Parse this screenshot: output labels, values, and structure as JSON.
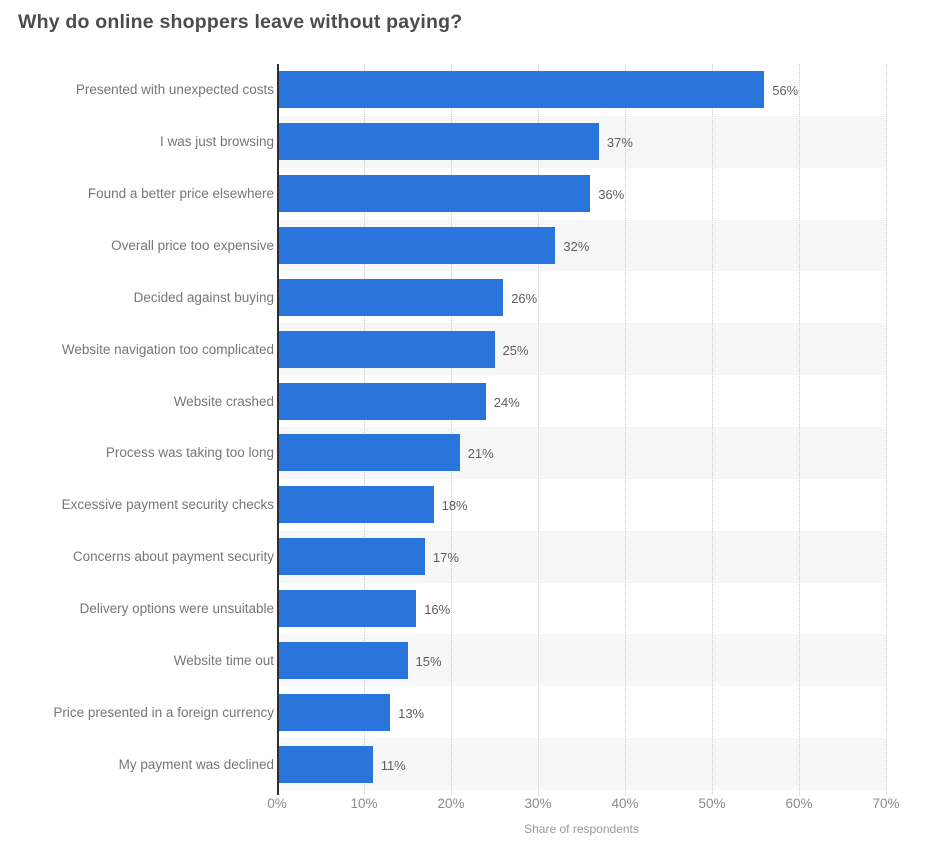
{
  "title": "Why do online shoppers leave without paying?",
  "chart_data": {
    "type": "bar",
    "orientation": "horizontal",
    "title": "Why do online shoppers leave without paying?",
    "categories": [
      "Presented with unexpected costs",
      "I was just browsing",
      "Found a better price elsewhere",
      "Overall price too expensive",
      "Decided against buying",
      "Website navigation too complicated",
      "Website crashed",
      "Process was taking too long",
      "Excessive payment security checks",
      "Concerns about payment security",
      "Delivery options were unsuitable",
      "Website time out",
      "Price presented in a foreign currency",
      "My payment was declined"
    ],
    "values": [
      56,
      37,
      36,
      32,
      26,
      25,
      24,
      21,
      18,
      17,
      16,
      15,
      13,
      11
    ],
    "unit": "%",
    "xlabel": "Share of respondents",
    "ylabel": "",
    "xlim": [
      0,
      70
    ],
    "x_ticks": [
      "0%",
      "10%",
      "20%",
      "30%",
      "40%",
      "50%",
      "60%",
      "70%"
    ],
    "x_tick_values": [
      0,
      10,
      20,
      30,
      40,
      50,
      60,
      70
    ],
    "grid": "vertical dotted gridlines at each 10%",
    "legend": "none",
    "zebra_striping": "even rows shaded"
  },
  "colors": {
    "bar": "#2a75db",
    "stripe": "#f7f7f7",
    "axis_line": "#2e2e2e",
    "gridline": "#cccccc",
    "title_text": "#4c4c4c",
    "category_text": "#767676",
    "value_text": "#5e5e5e",
    "tick_text": "#8c8c8c",
    "background": "#ffffff"
  }
}
